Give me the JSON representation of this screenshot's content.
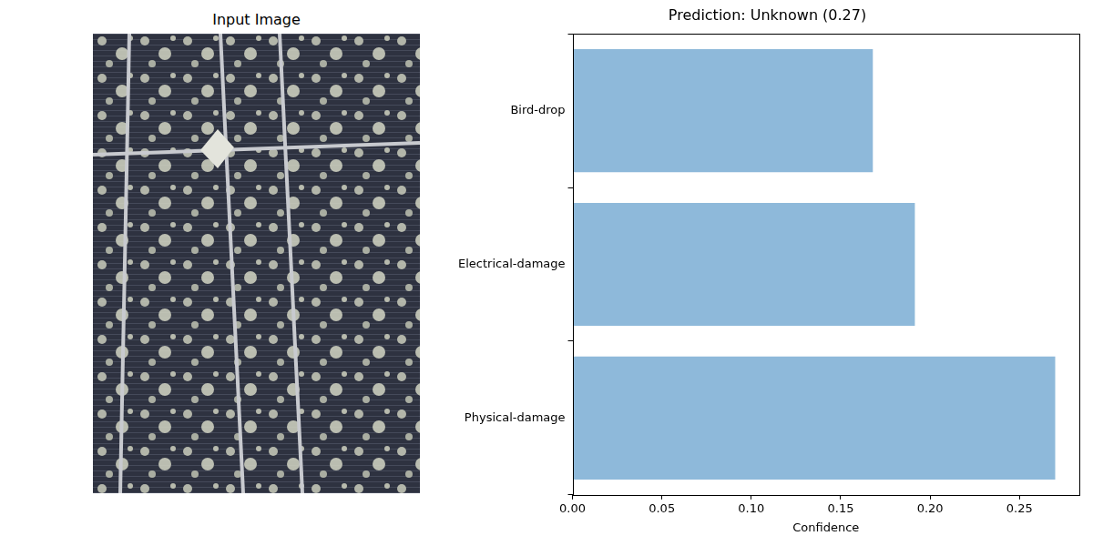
{
  "image_panel": {
    "title": "Input Image"
  },
  "chart_data": {
    "type": "bar",
    "orientation": "horizontal",
    "title": "Prediction: Unknown (0.27)",
    "x_label": "Confidence",
    "categories": [
      "Bird-drop",
      "Electrical-damage",
      "Physical-damage"
    ],
    "values": [
      0.168,
      0.1915,
      0.27
    ],
    "color": "#8eb9da",
    "xlim": [
      0,
      0.2835
    ],
    "xticks": [
      {
        "value": 0,
        "label": "0.00"
      },
      {
        "value": 0.05,
        "label": "0.05"
      },
      {
        "value": 0.1,
        "label": "0.10"
      },
      {
        "value": 0.15,
        "label": "0.15"
      },
      {
        "value": 0.2,
        "label": "0.20"
      },
      {
        "value": 0.25,
        "label": "0.25"
      }
    ],
    "grid": false
  }
}
